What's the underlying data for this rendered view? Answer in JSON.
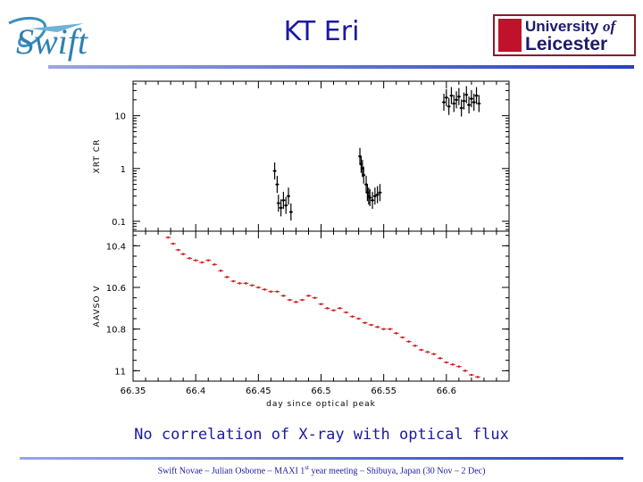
{
  "slide": {
    "title": "KT Eri",
    "caption": "No correlation of X-ray with optical flux",
    "footer_parts": [
      "Swift Novae – Julian Osborne – MAXI 1",
      "st",
      " year meeting – Shibuya, Japan (30 Nov – 2 Dec)"
    ]
  },
  "logos": {
    "left_text": "Swift",
    "right_line1_a": "University ",
    "right_line1_b": "of",
    "right_line2": "Leicester",
    "brand_colors": {
      "title_blue": "#1a1aa0",
      "leicester_red": "#c0122a",
      "leicester_navy": "#1c1a6b"
    }
  },
  "chart_data": [
    {
      "type": "scatter",
      "title": "",
      "xlabel": "day since optical peak",
      "ylabel": "XRT CR",
      "yscale": "log",
      "ytick_labels": [
        "10",
        "1",
        "0.1"
      ],
      "yticks": [
        10,
        1,
        0.1
      ],
      "xlim": [
        66.35,
        66.65
      ],
      "ylim": [
        0.065,
        45
      ],
      "color": "#000000",
      "series": [
        {
          "x": [
            66.463,
            66.465,
            66.466,
            66.468,
            66.47,
            66.472,
            66.474,
            66.476
          ],
          "y": [
            0.9,
            0.5,
            0.22,
            0.18,
            0.25,
            0.2,
            0.3,
            0.15
          ]
        },
        {
          "x": [
            66.531,
            66.532,
            66.533,
            66.534,
            66.536,
            66.537,
            66.538,
            66.539,
            66.541,
            66.543,
            66.545,
            66.547
          ],
          "y": [
            1.7,
            1.2,
            1.0,
            0.75,
            0.5,
            0.35,
            0.3,
            0.28,
            0.25,
            0.3,
            0.32,
            0.35
          ]
        },
        {
          "x": [
            66.598,
            66.6,
            66.602,
            66.604,
            66.606,
            66.608,
            66.61,
            66.612,
            66.614,
            66.616,
            66.618,
            66.62,
            66.622,
            66.624,
            66.626
          ],
          "y": [
            18,
            22,
            15,
            24,
            17,
            20,
            23,
            14,
            19,
            25,
            16,
            21,
            18,
            24,
            17
          ]
        }
      ]
    },
    {
      "type": "scatter",
      "title": "",
      "xlabel": "day since optical peak",
      "ylabel": "AAVSO V",
      "y_inverted": true,
      "ytick_labels": [
        "10.4",
        "10.6",
        "10.8",
        "11"
      ],
      "yticks": [
        10.4,
        10.6,
        10.8,
        11.0
      ],
      "xtick_labels": [
        "66.35",
        "66.4",
        "66.45",
        "66.5",
        "66.55",
        "66.6"
      ],
      "xticks": [
        66.35,
        66.4,
        66.45,
        66.5,
        66.55,
        66.6
      ],
      "xlim": [
        66.35,
        66.65
      ],
      "ylim": [
        10.33,
        11.05
      ],
      "color": "#cc2222",
      "x": [
        66.378,
        66.382,
        66.386,
        66.39,
        66.395,
        66.4,
        66.405,
        66.41,
        66.415,
        66.42,
        66.425,
        66.43,
        66.435,
        66.44,
        66.445,
        66.45,
        66.455,
        66.46,
        66.465,
        66.47,
        66.475,
        66.48,
        66.485,
        66.49,
        66.495,
        66.5,
        66.505,
        66.51,
        66.515,
        66.52,
        66.525,
        66.53,
        66.535,
        66.54,
        66.545,
        66.55,
        66.555,
        66.56,
        66.565,
        66.57,
        66.575,
        66.58,
        66.585,
        66.59,
        66.595,
        66.6,
        66.605,
        66.61,
        66.615,
        66.62,
        66.625
      ],
      "y": [
        10.36,
        10.39,
        10.42,
        10.44,
        10.46,
        10.47,
        10.48,
        10.47,
        10.49,
        10.52,
        10.55,
        10.57,
        10.58,
        10.58,
        10.59,
        10.6,
        10.61,
        10.62,
        10.62,
        10.64,
        10.66,
        10.67,
        10.66,
        10.64,
        10.65,
        10.68,
        10.7,
        10.71,
        10.7,
        10.72,
        10.74,
        10.75,
        10.77,
        10.78,
        10.79,
        10.8,
        10.8,
        10.82,
        10.84,
        10.86,
        10.88,
        10.9,
        10.91,
        10.92,
        10.94,
        10.96,
        10.97,
        10.98,
        11.0,
        11.02,
        11.03
      ]
    }
  ]
}
